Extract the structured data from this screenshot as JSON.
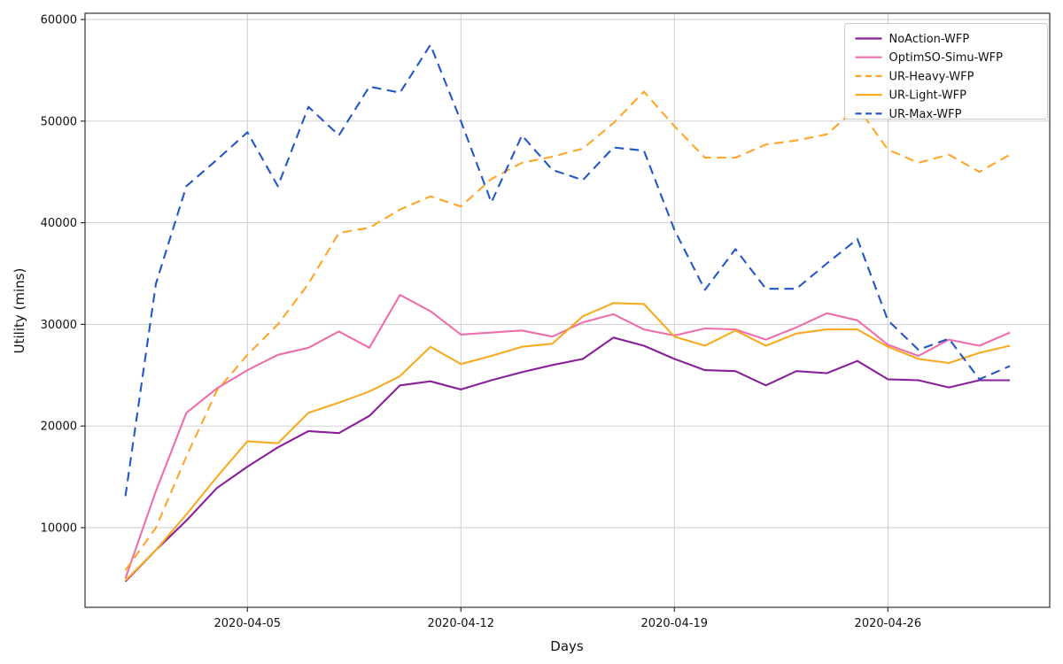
{
  "figure": {
    "xlabel": "Days",
    "ylabel": "Utility (mins)"
  },
  "chart_data": {
    "type": "line",
    "title": "",
    "xlabel": "Days",
    "ylabel": "Utility (mins)",
    "grid": true,
    "legend_position": "upper right",
    "x": [
      "2020-04-01",
      "2020-04-02",
      "2020-04-03",
      "2020-04-04",
      "2020-04-05",
      "2020-04-06",
      "2020-04-07",
      "2020-04-08",
      "2020-04-09",
      "2020-04-10",
      "2020-04-11",
      "2020-04-12",
      "2020-04-13",
      "2020-04-14",
      "2020-04-15",
      "2020-04-16",
      "2020-04-17",
      "2020-04-18",
      "2020-04-19",
      "2020-04-20",
      "2020-04-21",
      "2020-04-22",
      "2020-04-23",
      "2020-04-24",
      "2020-04-25",
      "2020-04-26",
      "2020-04-27",
      "2020-04-28",
      "2020-04-29",
      "2020-04-30"
    ],
    "x_tick_labels": [
      "2020-04-05",
      "2020-04-12",
      "2020-04-19",
      "2020-04-26"
    ],
    "x_tick_index": [
      4,
      11,
      18,
      25
    ],
    "y_ticks": [
      10000,
      20000,
      30000,
      40000,
      50000,
      60000
    ],
    "ylim": [
      2150,
      60600
    ],
    "series": [
      {
        "name": "NoAction-WFP",
        "color": "#8a1f9b",
        "style": "solid",
        "values": [
          4700,
          7800,
          10700,
          13900,
          16000,
          17900,
          19500,
          19300,
          21000,
          24000,
          24400,
          23600,
          24500,
          25300,
          26000,
          26600,
          28700,
          27900,
          26600,
          25500,
          25400,
          24000,
          25400,
          25200,
          26400,
          24600,
          24500,
          23800,
          24500,
          24500
        ]
      },
      {
        "name": "OptimSO-Simu-WFP",
        "color": "#ee6dab",
        "style": "solid",
        "values": [
          5000,
          13600,
          21300,
          23700,
          25500,
          27000,
          27700,
          29300,
          27700,
          32900,
          31300,
          29000,
          29200,
          29400,
          28800,
          30200,
          31000,
          29500,
          28900,
          29600,
          29500,
          28500,
          29700,
          31100,
          30400,
          28000,
          26900,
          28500,
          27900,
          29200
        ]
      },
      {
        "name": "UR-Heavy-WFP",
        "color": "#ffa629",
        "style": "dashed",
        "values": [
          5800,
          10000,
          17000,
          23500,
          27000,
          30000,
          34000,
          39000,
          39500,
          41300,
          42600,
          41600,
          44300,
          45900,
          46500,
          47300,
          49800,
          52900,
          49500,
          46400,
          46400,
          47700,
          48100,
          48700,
          51400,
          47200,
          45900,
          46700,
          45000,
          46700
        ]
      },
      {
        "name": "UR-Light-WFP",
        "color": "#f7ab21",
        "style": "solid",
        "values": [
          4800,
          7800,
          11300,
          15000,
          18500,
          18300,
          21300,
          22300,
          23400,
          24900,
          27800,
          26100,
          26900,
          27800,
          28100,
          30800,
          32100,
          32000,
          28800,
          27900,
          29400,
          27900,
          29100,
          29500,
          29500,
          27800,
          26600,
          26200,
          27200,
          27900
        ]
      },
      {
        "name": "UR-Max-WFP",
        "color": "#2356c7",
        "style": "dashed",
        "values": [
          13100,
          34000,
          43600,
          46200,
          48900,
          43600,
          51400,
          48600,
          53400,
          52800,
          57500,
          50000,
          42000,
          48600,
          45200,
          44200,
          47400,
          47100,
          39300,
          33400,
          37400,
          33500,
          33500,
          36000,
          38400,
          30400,
          27500,
          28600,
          24600,
          25900
        ]
      }
    ],
    "colors": {
      "grid": "#c9c9c9",
      "spine": "#333333",
      "background": "#ffffff",
      "legend_border": "#cccccc"
    }
  }
}
